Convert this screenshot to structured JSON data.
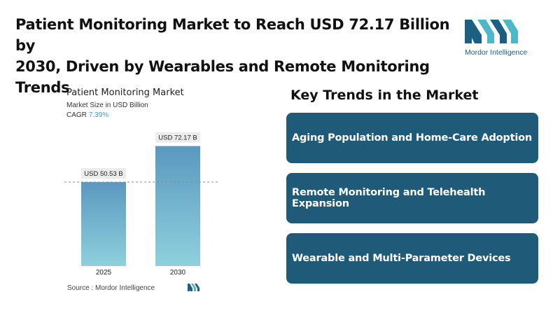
{
  "headline": {
    "line1": "Patient Monitoring Market to Reach USD 72.17 Billion by",
    "line2": "2030, Driven by Wearables and Remote Monitoring Trends"
  },
  "brand": {
    "name": "Mordor Intelligence",
    "colors": {
      "dark": "#1c5f80",
      "light": "#4fb8c8"
    }
  },
  "chart_data": {
    "type": "bar",
    "title": "Patient Monitoring Market",
    "subtitle": "Market Size in USD Billion",
    "cagr_label": "CAGR",
    "cagr_value": "7.39%",
    "categories": [
      "2025",
      "2030"
    ],
    "values": [
      50.53,
      72.17
    ],
    "value_labels": [
      "USD 50.53 B",
      "USD 72.17 B"
    ],
    "ylim": [
      0,
      80
    ],
    "grid": false,
    "reference_line": 50.53,
    "bar_gradient": {
      "top": "#5b98bf",
      "bottom": "#8fd0dc"
    }
  },
  "source": "Source :  Mordor Intelligence",
  "trends": {
    "title": "Key Trends in the Market",
    "items": [
      "Aging Population and Home-Care Adoption",
      "Remote Monitoring and Telehealth Expansion",
      "Wearable and Multi-Parameter Devices"
    ],
    "card_color": "#1f5b79"
  }
}
